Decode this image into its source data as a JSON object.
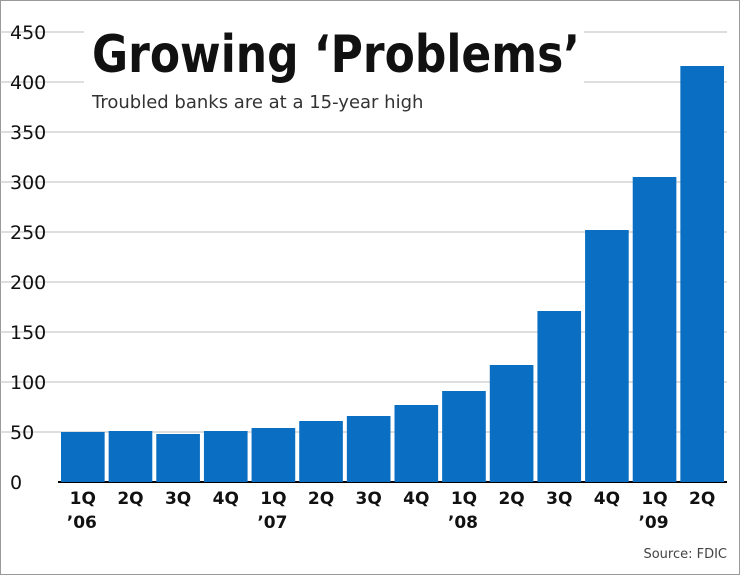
{
  "chart_data": {
    "type": "bar",
    "title": "Growing ‘Problems’",
    "subtitle": "Troubled banks are at a 15-year high",
    "source": "Source: FDIC",
    "xlabel": "",
    "ylabel": "",
    "ylim": [
      0,
      450
    ],
    "yticks": [
      0,
      50,
      100,
      150,
      200,
      250,
      300,
      350,
      400,
      450
    ],
    "grid": true,
    "categories": [
      "1Q",
      "2Q",
      "3Q",
      "4Q",
      "1Q",
      "2Q",
      "3Q",
      "4Q",
      "1Q",
      "2Q",
      "3Q",
      "4Q",
      "1Q",
      "2Q"
    ],
    "year_labels": [
      "’06",
      "",
      "",
      "",
      "’07",
      "",
      "",
      "",
      "’08",
      "",
      "",
      "",
      "’09",
      ""
    ],
    "values": [
      50,
      51,
      48,
      51,
      54,
      61,
      66,
      77,
      91,
      117,
      171,
      252,
      305,
      416
    ],
    "colors": {
      "bar": "#0a6fc2",
      "grid": "#bdbdbd",
      "text": "#111111"
    }
  }
}
